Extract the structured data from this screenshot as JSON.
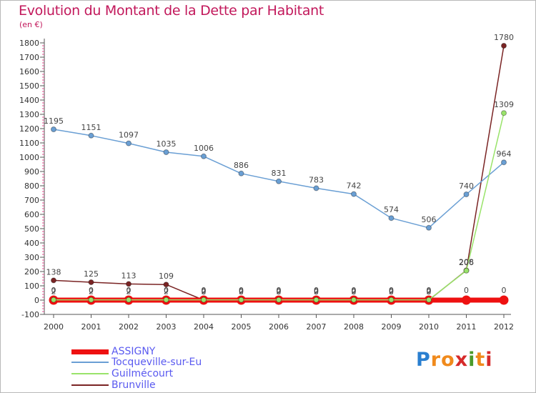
{
  "chart_data": {
    "type": "line",
    "title": "Evolution du Montant de la Dette par Habitant",
    "subtitle": "(en €)",
    "x": [
      "2000",
      "2001",
      "2002",
      "2003",
      "2004",
      "2005",
      "2006",
      "2007",
      "2008",
      "2009",
      "2010",
      "2011",
      "2012"
    ],
    "ylim": [
      -100,
      1800
    ],
    "yticks": [
      "-100",
      "0",
      "100",
      "200",
      "300",
      "400",
      "500",
      "600",
      "700",
      "800",
      "900",
      "1000",
      "1100",
      "1200",
      "1300",
      "1400",
      "1500",
      "1600",
      "1700",
      "1800"
    ],
    "grid": false,
    "legend_position": "bottom-left",
    "series": [
      {
        "name": "ASSIGNY",
        "color": "#ee1111",
        "values": [
          0,
          0,
          0,
          0,
          0,
          0,
          0,
          0,
          0,
          0,
          0,
          0,
          0
        ],
        "labels": [
          "0",
          "0",
          "0",
          "0",
          "0",
          "0",
          "0",
          "0",
          "0",
          "0",
          "0",
          "0",
          "0"
        ]
      },
      {
        "name": "Tocqueville-sur-Eu",
        "color": "#6a9fd4",
        "values": [
          1195,
          1151,
          1097,
          1035,
          1006,
          886,
          831,
          783,
          742,
          574,
          506,
          740,
          964
        ],
        "labels": [
          "1195",
          "1151",
          "1097",
          "1035",
          "1006",
          "886",
          "831",
          "783",
          "742",
          "574",
          "506",
          "740",
          "964"
        ]
      },
      {
        "name": "Guilmécourt",
        "color": "#99e36a",
        "values": [
          2,
          2,
          2,
          2,
          2,
          2,
          2,
          2,
          2,
          2,
          2,
          206,
          1309
        ],
        "labels": [
          "2",
          "2",
          "2",
          "2",
          "2",
          "2",
          "2",
          "2",
          "2",
          "2",
          "2",
          "206",
          "1309"
        ]
      },
      {
        "name": "Brunville",
        "color": "#7a2424",
        "values": [
          138,
          125,
          113,
          109,
          0,
          0,
          0,
          0,
          0,
          0,
          0,
          208,
          1780
        ],
        "labels": [
          "138",
          "125",
          "113",
          "109",
          "0",
          "0",
          "0",
          "0",
          "0",
          "0",
          "0",
          "208",
          "1780"
        ]
      }
    ]
  },
  "logo": {
    "letters": [
      "P",
      "r",
      "o",
      "x",
      "i",
      "t",
      "i"
    ],
    "colors": [
      "#2a7fd0",
      "#f08a1c",
      "#f08a1c",
      "#d62a2a",
      "#4a9a2a",
      "#f08a1c",
      "#d62a2a"
    ]
  }
}
